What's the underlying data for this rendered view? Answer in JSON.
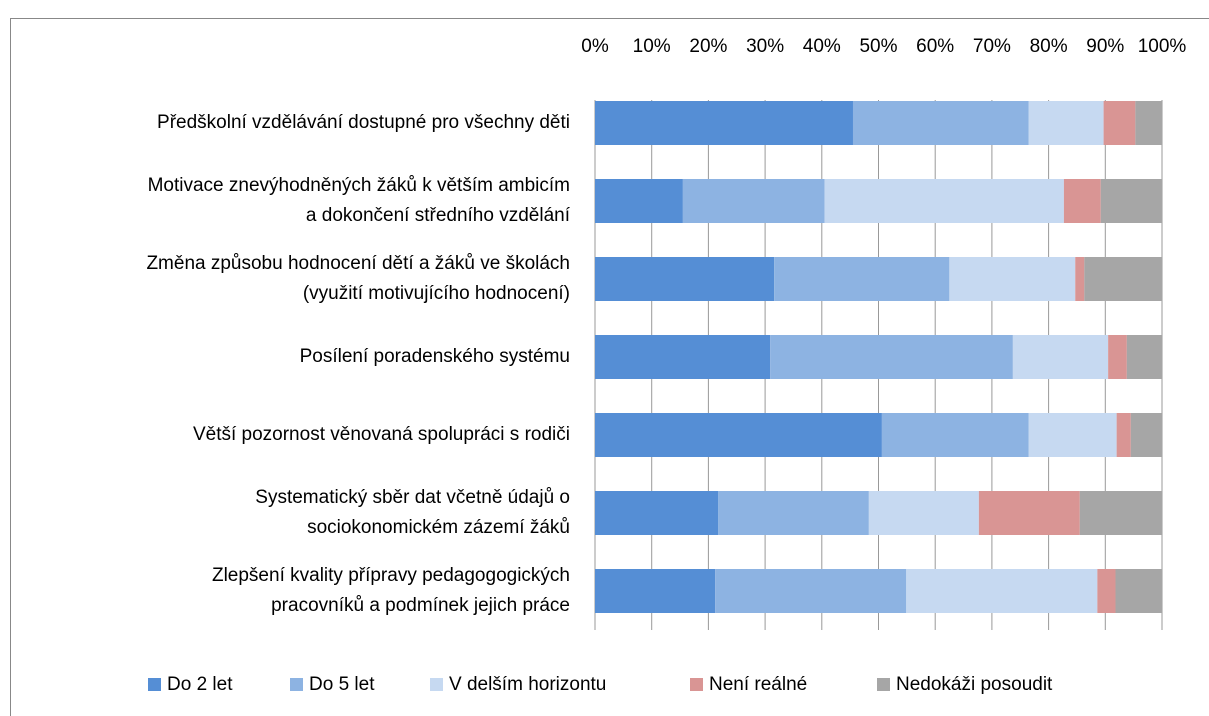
{
  "chart_data": {
    "type": "stacked-bar-horizontal",
    "categories": [
      [
        "Předškolní vzdělávání dostupné pro všechny děti"
      ],
      [
        "Motivace znevýhodněných žáků k větším ambicím",
        "a dokončení středního vzdělání"
      ],
      [
        "Změna způsobu hodnocení dětí a žáků ve školách",
        "(využití motivujícího hodnocení)"
      ],
      [
        "Posílení poradenského systému"
      ],
      [
        "Větší pozornost věnovaná spolupráci s rodiči"
      ],
      [
        "Systematický sběr dat včetně údajů o",
        "sociokonomickém zázemí žáků"
      ],
      [
        "Zlepšení kvality přípravy pedagogogických",
        "pracovníků a podmínek jejich práce"
      ]
    ],
    "series": [
      {
        "name": "Do 2 let",
        "color": "#558ed5",
        "values": [
          45.5,
          15.5,
          31.6,
          30.9,
          50.6,
          21.7,
          21.2
        ]
      },
      {
        "name": "Do 5 let",
        "color": "#8db3e2",
        "values": [
          31.0,
          25.0,
          30.9,
          42.8,
          25.9,
          26.6,
          33.7
        ]
      },
      {
        "name": "V delším horizontu",
        "color": "#c6d9f1",
        "values": [
          13.2,
          42.2,
          22.2,
          16.8,
          15.5,
          19.4,
          33.7
        ]
      },
      {
        "name": "Není reálné",
        "color": "#d99594",
        "values": [
          5.6,
          6.5,
          1.6,
          3.3,
          2.5,
          17.8,
          3.2
        ]
      },
      {
        "name": "Nedokáži posoudit",
        "color": "#a6a6a6",
        "values": [
          4.7,
          10.8,
          13.7,
          6.2,
          5.5,
          14.5,
          8.2
        ]
      }
    ],
    "xlim": [
      0,
      100
    ],
    "xticks": [
      {
        "value": 0,
        "label": "0%"
      },
      {
        "value": 10,
        "label": "10%"
      },
      {
        "value": 20,
        "label": "20%"
      },
      {
        "value": 30,
        "label": "30%"
      },
      {
        "value": 40,
        "label": "40%"
      },
      {
        "value": 50,
        "label": "50%"
      },
      {
        "value": 60,
        "label": "60%"
      },
      {
        "value": 70,
        "label": "70%"
      },
      {
        "value": 80,
        "label": "80%"
      },
      {
        "value": 90,
        "label": "90%"
      },
      {
        "value": 100,
        "label": "100%"
      }
    ],
    "grid": true,
    "legend": "bottom"
  }
}
